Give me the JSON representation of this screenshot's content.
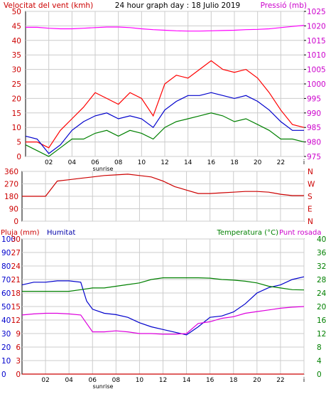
{
  "chart_data": [
    {
      "type": "line",
      "title": "24 hour graph day : 18 Julio 2019",
      "left_axis_label": "Velocitat del vent (kmh)",
      "right_axis_label": "Pressió (mb)",
      "x_ticks": [
        "02",
        "04",
        "06",
        "08",
        "10",
        "12",
        "14",
        "16",
        "18",
        "20",
        "22",
        "i"
      ],
      "x_sub_label": "sunrise",
      "left_ticks": [
        "0",
        "5",
        "10",
        "15",
        "20",
        "25",
        "30",
        "35",
        "40",
        "45",
        "50"
      ],
      "left_range": [
        0,
        50
      ],
      "right_ticks": [
        "975",
        "980",
        "985",
        "990",
        "995",
        "1000",
        "1005",
        "1010",
        "1015",
        "1020",
        "1025"
      ],
      "right_range": [
        975,
        1025
      ],
      "grid": true,
      "series": [
        {
          "color": "#ff00ff",
          "axis": "right",
          "x": [
            0,
            1,
            2,
            3,
            4,
            5,
            6,
            7,
            8,
            9,
            10,
            11,
            12,
            13,
            14,
            15,
            16,
            17,
            18,
            19,
            20,
            21,
            22,
            23,
            24
          ],
          "y": [
            1019.5,
            1019.5,
            1019.2,
            1019.0,
            1019.0,
            1019.2,
            1019.4,
            1019.6,
            1019.6,
            1019.4,
            1019.0,
            1018.7,
            1018.5,
            1018.3,
            1018.2,
            1018.2,
            1018.3,
            1018.4,
            1018.5,
            1018.7,
            1018.8,
            1019.0,
            1019.4,
            1019.8,
            1020.2
          ]
        },
        {
          "color": "#ff0000",
          "axis": "left",
          "x": [
            0,
            1,
            2,
            3,
            4,
            5,
            6,
            7,
            8,
            9,
            10,
            11,
            12,
            13,
            14,
            15,
            16,
            17,
            18,
            19,
            20,
            21,
            22,
            23,
            24
          ],
          "y": [
            5,
            5,
            3,
            9,
            13,
            17,
            22,
            20,
            18,
            22,
            20,
            14,
            25,
            28,
            27,
            30,
            33,
            30,
            29,
            30,
            27,
            22,
            16,
            11,
            10
          ]
        },
        {
          "color": "#0000cc",
          "axis": "left",
          "x": [
            0,
            1,
            2,
            3,
            4,
            5,
            6,
            7,
            8,
            9,
            10,
            11,
            12,
            13,
            14,
            15,
            16,
            17,
            18,
            19,
            20,
            21,
            22,
            23,
            24
          ],
          "y": [
            7,
            6,
            1,
            4,
            9,
            12,
            14,
            15,
            13,
            14,
            13,
            10,
            16,
            19,
            21,
            21,
            22,
            21,
            20,
            21,
            19,
            16,
            12,
            9,
            9
          ]
        },
        {
          "color": "#008000",
          "axis": "left",
          "x": [
            0,
            1,
            2,
            3,
            4,
            5,
            6,
            7,
            8,
            9,
            10,
            11,
            12,
            13,
            14,
            15,
            16,
            17,
            18,
            19,
            20,
            21,
            22,
            23,
            24
          ],
          "y": [
            4,
            2,
            0,
            3,
            6,
            6,
            8,
            9,
            7,
            9,
            8,
            6,
            10,
            12,
            13,
            14,
            15,
            14,
            12,
            13,
            11,
            9,
            6,
            6,
            5
          ]
        }
      ]
    },
    {
      "type": "line",
      "left_ticks": [
        "0",
        "90",
        "180",
        "270",
        "360"
      ],
      "left_range": [
        0,
        360
      ],
      "right_ticks": [
        "N",
        "E",
        "S",
        "W",
        "N"
      ],
      "x_sub_label": "",
      "series": [
        {
          "color": "#cc0000",
          "x": [
            0,
            1,
            2,
            3,
            4,
            5,
            6,
            7,
            8,
            9,
            10,
            11,
            12,
            13,
            14,
            15,
            16,
            17,
            18,
            19,
            20,
            21,
            22,
            23,
            24
          ],
          "y": [
            180,
            180,
            180,
            290,
            300,
            310,
            320,
            330,
            335,
            340,
            330,
            320,
            290,
            250,
            225,
            200,
            200,
            205,
            210,
            215,
            215,
            210,
            195,
            185,
            185
          ]
        }
      ]
    },
    {
      "type": "line",
      "top_left_label": "Pluja (mm)",
      "top_mid_label": "Humitat",
      "top_right_label_1": "Temperatura (°C)",
      "top_right_label_2": "Punt rosada",
      "x_ticks": [
        "02",
        "04",
        "06",
        "08",
        "10",
        "12",
        "14",
        "16",
        "18",
        "20",
        "22",
        "i"
      ],
      "x_sub_label": "sunrise",
      "rain_ticks": [
        "0",
        "10",
        "20",
        "30",
        "40",
        "50",
        "60",
        "70",
        "80",
        "90",
        "100"
      ],
      "humidity_ticks": [
        "0",
        "3",
        "6",
        "9",
        "12",
        "15",
        "18",
        "21",
        "24",
        "27",
        "30"
      ],
      "temp_ticks": [
        "0",
        "4",
        "8",
        "12",
        "16",
        "20",
        "24",
        "28",
        "32",
        "36",
        "40"
      ],
      "humidity_range": [
        0,
        100
      ],
      "temp_range": [
        0,
        40
      ],
      "series": [
        {
          "color": "#0000cc",
          "axis": "humidity",
          "x": [
            0,
            1,
            2,
            3,
            4,
            5,
            5.5,
            6,
            7,
            8,
            9,
            10,
            11,
            12,
            13,
            14,
            15,
            16,
            17,
            18,
            19,
            20,
            21,
            22,
            23,
            24
          ],
          "y": [
            66,
            68,
            68,
            69,
            69,
            68,
            54,
            48,
            45,
            44,
            42,
            38,
            35,
            33,
            31,
            29,
            35,
            42,
            43,
            46,
            52,
            60,
            64,
            66,
            70,
            72
          ]
        },
        {
          "color": "#008000",
          "axis": "temp",
          "x": [
            0,
            1,
            2,
            3,
            4,
            5,
            6,
            7,
            8,
            9,
            10,
            11,
            12,
            13,
            14,
            15,
            16,
            17,
            18,
            19,
            20,
            21,
            22,
            23,
            24
          ],
          "y": [
            24.5,
            24.5,
            24.5,
            24.5,
            24.5,
            25,
            25.5,
            25.5,
            26,
            26.5,
            27,
            28,
            28.5,
            28.5,
            28.5,
            28.5,
            28.4,
            28,
            27.8,
            27.5,
            27,
            26,
            25.5,
            25,
            24.9
          ]
        },
        {
          "color": "#dd00dd",
          "axis": "temp",
          "x": [
            0,
            1,
            2,
            3,
            4,
            5,
            5.5,
            6,
            7,
            8,
            9,
            10,
            11,
            12,
            13,
            14,
            15,
            16,
            17,
            18,
            19,
            20,
            21,
            22,
            23,
            24
          ],
          "y": [
            17.5,
            17.8,
            18,
            18,
            17.8,
            17.5,
            15,
            12.5,
            12.5,
            12.8,
            12.5,
            12,
            12,
            11.8,
            11.8,
            12,
            15,
            15.5,
            16.5,
            17,
            18,
            18.5,
            19,
            19.5,
            19.8,
            20
          ]
        },
        {
          "color": "#cc0000",
          "axis": "humidity",
          "x": [
            0,
            24
          ],
          "y": [
            0,
            0
          ]
        }
      ]
    }
  ],
  "colors": {
    "grid": "#cccccc",
    "axis": "#000000",
    "left_label": "#cc0000",
    "right_label": "#cc00cc",
    "rain_label": "#cc0000",
    "humidity_label": "#0000aa",
    "temp_label": "#008000",
    "dew_label": "#cc00cc"
  }
}
